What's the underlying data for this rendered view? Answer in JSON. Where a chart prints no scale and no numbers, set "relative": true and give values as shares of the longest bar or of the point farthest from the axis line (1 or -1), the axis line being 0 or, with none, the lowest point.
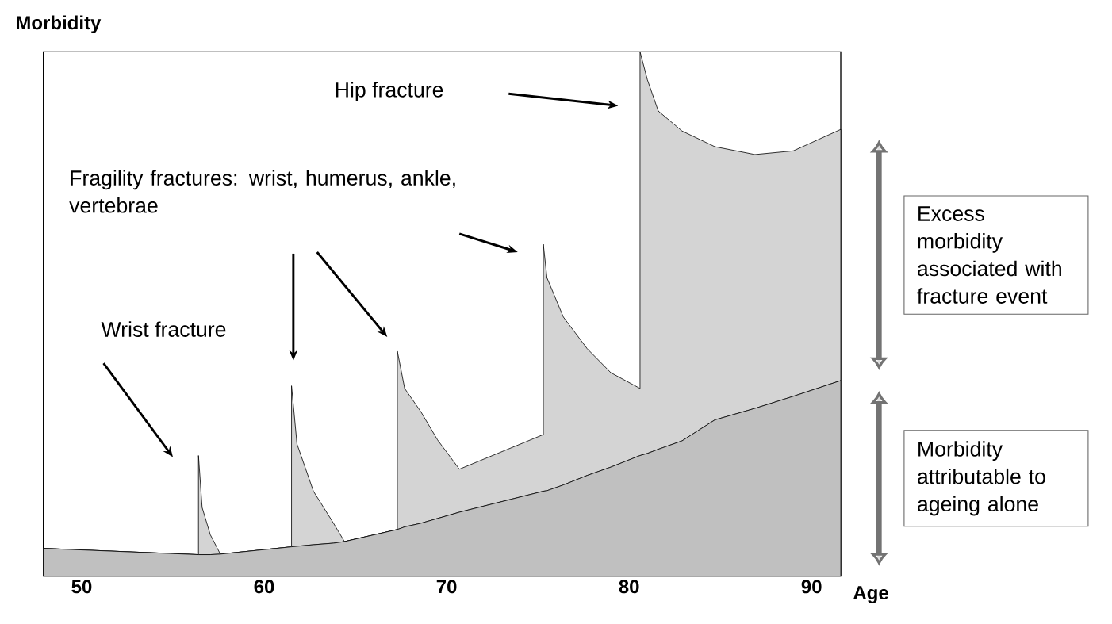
{
  "chart_data": {
    "type": "area",
    "relative": true,
    "stacked": true,
    "ylabel": "Morbidity",
    "xlabel": "Age",
    "xlim": [
      47.9,
      91.6
    ],
    "xticks": [
      50,
      60,
      70,
      80,
      90
    ],
    "legend": "right",
    "x": [
      47.9,
      56.4,
      56.4,
      56.6,
      57.05,
      57.6,
      61.5,
      61.5,
      61.8,
      62.7,
      63.8,
      64.4,
      67.3,
      67.3,
      67.7,
      68.6,
      69.5,
      70.7,
      75.3,
      75.3,
      75.5,
      76.4,
      77.7,
      79.0,
      80.6,
      80.6,
      81.0,
      81.6,
      82.9,
      84.7,
      86.9,
      89.0,
      91.6
    ],
    "series": [
      {
        "name": "Morbidity attributable to ageing alone",
        "color": "#c0c0c0",
        "values": [
          0.053,
          0.041,
          0.041,
          0.041,
          0.041,
          0.042,
          0.056,
          0.056,
          0.057,
          0.06,
          0.063,
          0.066,
          0.089,
          0.089,
          0.094,
          0.101,
          0.11,
          0.122,
          0.162,
          0.162,
          0.163,
          0.174,
          0.192,
          0.208,
          0.23,
          0.23,
          0.234,
          0.242,
          0.258,
          0.298,
          0.32,
          0.343,
          0.373
        ]
      },
      {
        "name": "Excess morbidity associated with fracture event",
        "color": "#d4d4d4",
        "values": [
          0,
          0,
          0.189,
          0.09,
          0.038,
          0,
          0,
          0.307,
          0.195,
          0.102,
          0.038,
          0,
          0,
          0.34,
          0.264,
          0.212,
          0.15,
          0.082,
          0.108,
          0.471,
          0.406,
          0.32,
          0.242,
          0.18,
          0.128,
          0.77,
          0.713,
          0.645,
          0.591,
          0.521,
          0.484,
          0.468,
          0.479
        ]
      }
    ],
    "annotations": [
      "Hip fracture",
      "Fragility fractures: wrist, humerus, ankle, vertebrae",
      "Wrist fracture"
    ]
  }
}
